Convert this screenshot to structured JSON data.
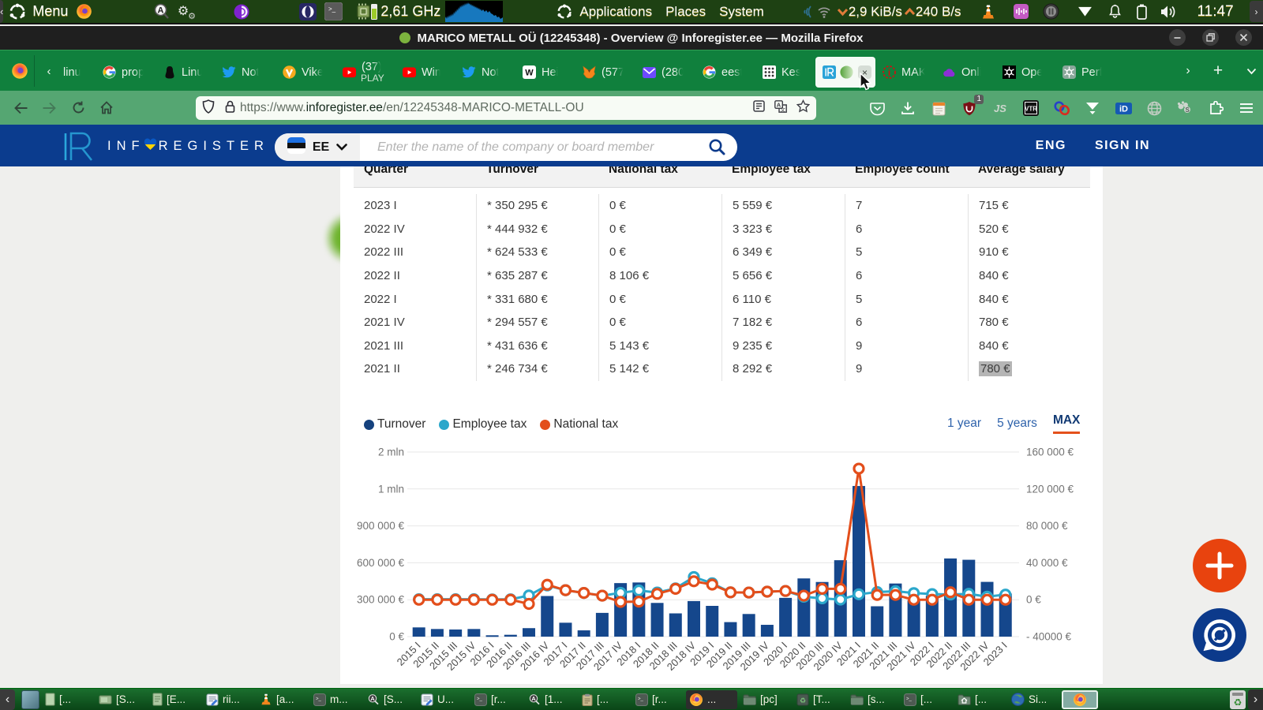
{
  "desktop_panel": {
    "collapse_arrow": "<",
    "menu_label": "Menu",
    "cpu_freq": "2,61 GHz",
    "menus": [
      "Applications",
      "Places",
      "System"
    ],
    "net_down": "2,9 KiB/s",
    "net_up": "240 B/s",
    "clock": "11:47",
    "left_icons": [
      "mate-menu-icon",
      "firefox-icon",
      "search-a-icon",
      "gears-icon",
      "tor-browser-icon",
      "opera-icon",
      "terminal-icon",
      "cpu-chip-icon",
      "system-monitor-graph"
    ],
    "right_icons": [
      "network-waves-icon",
      "wifi-icon",
      "vlc-icon",
      "volume-applet-icon",
      "dark-circle-icon",
      "fan-triangle-icon",
      "bell-icon",
      "battery-icon",
      "speaker-icon",
      "power-icon"
    ]
  },
  "titlebar": {
    "favicon": "green-circle",
    "title": "MARICO METALL OÜ (12245348) - Overview @ Inforegister.ee — Mozilla Firefox",
    "buttons": [
      "minimize",
      "restore",
      "close"
    ]
  },
  "tabbar": {
    "scroll_left": "‹",
    "scroll_right": "›",
    "new_tab": "+",
    "list_tabs": "⌄",
    "tabs": [
      {
        "label": "linu",
        "icon": "none"
      },
      {
        "label": "prop",
        "icon": "google-icon"
      },
      {
        "label": "Linu",
        "icon": "penguin-icon"
      },
      {
        "label": "Not",
        "icon": "twitter-icon"
      },
      {
        "label": "Vike",
        "icon": "orange-v-icon"
      },
      {
        "label": "(37)",
        "label2": "PLAY",
        "icon": "youtube-icon"
      },
      {
        "label": "Win",
        "icon": "youtube-icon"
      },
      {
        "label": "Not",
        "icon": "twitter-icon"
      },
      {
        "label": "Hei",
        "icon": "wikipedia-icon"
      },
      {
        "label": "(577",
        "icon": "fox-icon"
      },
      {
        "label": "(280",
        "icon": "proton-mail-icon"
      },
      {
        "label": "eest",
        "icon": "google-icon"
      },
      {
        "label": "Kes",
        "icon": "grid-icon"
      },
      {
        "label": "",
        "icon": "inforegister-icon",
        "status_icon": "green-circle",
        "active": true,
        "close": "×"
      },
      {
        "label": "MAK",
        "icon": "info-red-icon"
      },
      {
        "label": "Onli",
        "icon": "purple-cloud-icon"
      },
      {
        "label": "Ope",
        "icon": "openai-black-icon"
      },
      {
        "label": "Perf",
        "icon": "openai-sage-icon"
      }
    ]
  },
  "navbar": {
    "back": "←",
    "forward": "→",
    "reload": "⟳",
    "home": "home-icon",
    "url_protocol": "https://www.",
    "url_domain": "inforegister.ee",
    "url_path": "/en/12245348-MARICO-METALL-OU",
    "urlbar_icons": [
      "shield-icon",
      "lock-icon"
    ],
    "urlbar_right_icons": [
      "reader-mode-icon",
      "translate-icon",
      "bookmark-star-icon"
    ],
    "ublock_badge": "1",
    "toolbar_icons": [
      "pocket-icon",
      "download-icon",
      "notes-icon",
      "ublock-icon",
      "js-icon",
      "vtr-icon",
      "links-icon",
      "triangle-down-icon",
      "id-icon",
      "globe-icon",
      "paws-icon",
      "puzzle-icon",
      "menu-hamburger-icon"
    ]
  },
  "site": {
    "brand_prefix": "INF",
    "brand_heart": "ukraine-heart-icon",
    "brand_suffix": "REGISTER",
    "lang_code": "EE",
    "lang_flag": "estonia-flag-icon",
    "search_placeholder": "Enter the name of the company or board member",
    "header_links": [
      "ENG",
      "SIGN IN"
    ],
    "table": {
      "columns": [
        "Quarter",
        "Turnover",
        "National tax",
        "Employee tax",
        "Employee count",
        "Average salary"
      ],
      "rows": [
        [
          "2023 I",
          "* 350 295 €",
          "0 €",
          "5 559 €",
          "7",
          "715 €"
        ],
        [
          "2022 IV",
          "* 444 932 €",
          "0 €",
          "3 323 €",
          "6",
          "520 €"
        ],
        [
          "2022 III",
          "* 624 533 €",
          "0 €",
          "6 349 €",
          "5",
          "910 €"
        ],
        [
          "2022 II",
          "* 635 287 €",
          "8 106 €",
          "5 656 €",
          "6",
          "840 €"
        ],
        [
          "2022 I",
          "* 331 680 €",
          "0 €",
          "6 110 €",
          "5",
          "840 €"
        ],
        [
          "2021 IV",
          "* 294 557 €",
          "0 €",
          "7 182 €",
          "6",
          "780 €"
        ],
        [
          "2021 III",
          "* 431 636 €",
          "5 143 €",
          "9 235 €",
          "9",
          "840 €"
        ],
        [
          "2021 II",
          "* 246 734 €",
          "5 142 €",
          "8 292 €",
          "9",
          "780 €"
        ]
      ],
      "selected_cell": {
        "row": 7,
        "col": 5
      }
    },
    "legend": [
      {
        "label": "Turnover",
        "color": "#15427e"
      },
      {
        "label": "Employee tax",
        "color": "#2ba7cb"
      },
      {
        "label": "National tax",
        "color": "#e34e1b"
      }
    ],
    "range_buttons": [
      {
        "label": "1 year",
        "active": false
      },
      {
        "label": "5 years",
        "active": false
      },
      {
        "label": "MAX",
        "active": true
      }
    ]
  },
  "chart_data": {
    "type": "bar",
    "title": "",
    "categories": [
      "2015 I",
      "2015 II",
      "2015 III",
      "2015 IV",
      "2016 I",
      "2016 II",
      "2016 III",
      "2016 IV",
      "2017 I",
      "2017 II",
      "2017 III",
      "2017 IV",
      "2018 I",
      "2018 II",
      "2018 III",
      "2018 IV",
      "2019 I",
      "2019 II",
      "2019 III",
      "2019 IV",
      "2020 I",
      "2020 II",
      "2020 III",
      "2020 IV",
      "2021 I",
      "2021 II",
      "2021 III",
      "2021 IV",
      "2022 I",
      "2022 II",
      "2022 III",
      "2022 IV",
      "2023 I"
    ],
    "series": [
      {
        "name": "Turnover",
        "type": "bar",
        "axis": "left",
        "color": "#15478c",
        "values": [
          75000,
          62000,
          58000,
          62000,
          11000,
          15000,
          69000,
          330000,
          113000,
          51000,
          193000,
          435000,
          440000,
          274000,
          189000,
          289000,
          250000,
          118000,
          184000,
          96000,
          315000,
          473000,
          444000,
          621000,
          1080000,
          246734,
          431636,
          294557,
          331680,
          635287,
          624533,
          444932,
          350295
        ]
      },
      {
        "name": "Employee tax",
        "type": "line",
        "axis": "right",
        "color": "#2ba7cb",
        "values": [
          500,
          500,
          500,
          500,
          300,
          400,
          4600,
          15500,
          10300,
          7300,
          4400,
          7500,
          10000,
          7800,
          12300,
          24600,
          17800,
          8000,
          7800,
          8700,
          9500,
          3200,
          1500,
          200,
          5900,
          8292,
          9235,
          7182,
          6110,
          5656,
          6349,
          3323,
          5559
        ]
      },
      {
        "name": "National tax",
        "type": "line",
        "axis": "right",
        "color": "#e34e1b",
        "values": [
          0,
          0,
          0,
          0,
          0,
          0,
          -4500,
          16200,
          10300,
          7300,
          4400,
          -2400,
          -2100,
          6400,
          11800,
          20000,
          16400,
          8000,
          7800,
          8700,
          9500,
          4400,
          11800,
          11800,
          142000,
          5142,
          5143,
          0,
          0,
          8106,
          0,
          0,
          0
        ]
      }
    ],
    "left_axis": {
      "tick_labels": [
        "0 €",
        "300 000 €",
        "600 000 €",
        "900 000 €",
        "1 mln",
        "2 mln"
      ],
      "tick_values": [
        0,
        300000,
        600000,
        900000,
        1000000,
        2000000
      ]
    },
    "right_axis": {
      "tick_labels": [
        "- 40000 €",
        "0 €",
        "40 000 €",
        "80 000 €",
        "120 000 €",
        "160 000 €"
      ],
      "tick_values": [
        -40000,
        0,
        40000,
        80000,
        120000,
        160000
      ]
    },
    "grid": true,
    "legend_position": "top-left"
  },
  "fabs": [
    {
      "name": "add",
      "icon": "plus-icon",
      "color": "#e8430e"
    },
    {
      "name": "chat",
      "icon": "chat-logo-icon",
      "color": "#0c3a8b"
    }
  ],
  "taskbar": {
    "back_arrow": "<",
    "chevron": "›",
    "items": [
      {
        "label": "[...",
        "icon": "doc-green-icon"
      },
      {
        "label": "[S...",
        "icon": "card-green-icon"
      },
      {
        "label": "[E...",
        "icon": "doc-lines-icon"
      },
      {
        "label": "rii...",
        "icon": "text-editor-icon"
      },
      {
        "label": "[a...",
        "icon": "vlc-icon"
      },
      {
        "label": "m...",
        "icon": "terminal-icon"
      },
      {
        "label": "[S...",
        "icon": "search-a-icon"
      },
      {
        "label": "U...",
        "icon": "text-editor-icon"
      },
      {
        "label": "[r...",
        "icon": "terminal-icon"
      },
      {
        "label": "[1...",
        "icon": "search-a-icon"
      },
      {
        "label": "[...",
        "icon": "clipboard-icon"
      },
      {
        "label": "[r...",
        "icon": "terminal-icon"
      },
      {
        "label": "...",
        "icon": "firefox-icon",
        "style": "dark"
      },
      {
        "label": "[pc]",
        "icon": "folder-icon"
      },
      {
        "label": "[T...",
        "icon": "package-icon"
      },
      {
        "label": "[s...",
        "icon": "folder-icon"
      },
      {
        "label": "[...",
        "icon": "terminal-icon"
      },
      {
        "label": "[...",
        "icon": "folder-home-icon"
      },
      {
        "label": "Si...",
        "icon": "globe-color-icon"
      },
      {
        "label": "",
        "icon": "firefox-icon",
        "style": "active"
      }
    ]
  }
}
